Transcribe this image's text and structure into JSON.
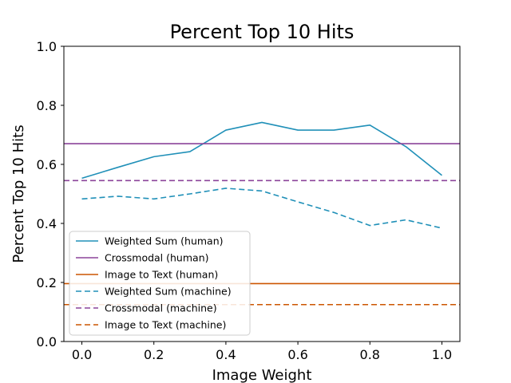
{
  "chart_data": {
    "type": "line",
    "title": "Percent Top 10 Hits",
    "xlabel": "Image Weight",
    "ylabel": "Percent Top 10 Hits",
    "xlim": [
      -0.05,
      1.05
    ],
    "ylim": [
      0.0,
      1.0
    ],
    "xticks": [
      0.0,
      0.2,
      0.4,
      0.6,
      0.8,
      1.0
    ],
    "yticks": [
      0.0,
      0.2,
      0.4,
      0.6,
      0.8,
      1.0
    ],
    "xtick_labels": [
      "0.0",
      "0.2",
      "0.4",
      "0.6",
      "0.8",
      "1.0"
    ],
    "ytick_labels": [
      "0.0",
      "0.2",
      "0.4",
      "0.6",
      "0.8",
      "1.0"
    ],
    "grid": false,
    "legend_position": "lower-left",
    "series": [
      {
        "name": "Weighted Sum (human)",
        "kind": "line",
        "color": "#2090b8",
        "dash": "solid",
        "x": [
          0.0,
          0.1,
          0.2,
          0.3,
          0.4,
          0.5,
          0.6,
          0.7,
          0.8,
          0.9,
          1.0
        ],
        "values": [
          0.553,
          0.59,
          0.626,
          0.643,
          0.716,
          0.742,
          0.716,
          0.716,
          0.733,
          0.66,
          0.563
        ]
      },
      {
        "name": "Crossmodal (human)",
        "kind": "hline",
        "color": "#8b449a",
        "dash": "solid",
        "value": 0.67
      },
      {
        "name": "Image to Text (human)",
        "kind": "hline",
        "color": "#cc5500",
        "dash": "solid",
        "value": 0.196
      },
      {
        "name": "Weighted Sum (machine)",
        "kind": "line",
        "color": "#2090b8",
        "dash": "dashed",
        "x": [
          0.0,
          0.1,
          0.2,
          0.3,
          0.4,
          0.5,
          0.6,
          0.7,
          0.8,
          0.9,
          1.0
        ],
        "values": [
          0.483,
          0.492,
          0.483,
          0.5,
          0.519,
          0.51,
          0.473,
          0.437,
          0.393,
          0.412,
          0.384
        ]
      },
      {
        "name": "Crossmodal (machine)",
        "kind": "hline",
        "color": "#8b449a",
        "dash": "dashed",
        "value": 0.545
      },
      {
        "name": "Image to Text (machine)",
        "kind": "hline",
        "color": "#cc5500",
        "dash": "dashed",
        "value": 0.125
      }
    ]
  }
}
